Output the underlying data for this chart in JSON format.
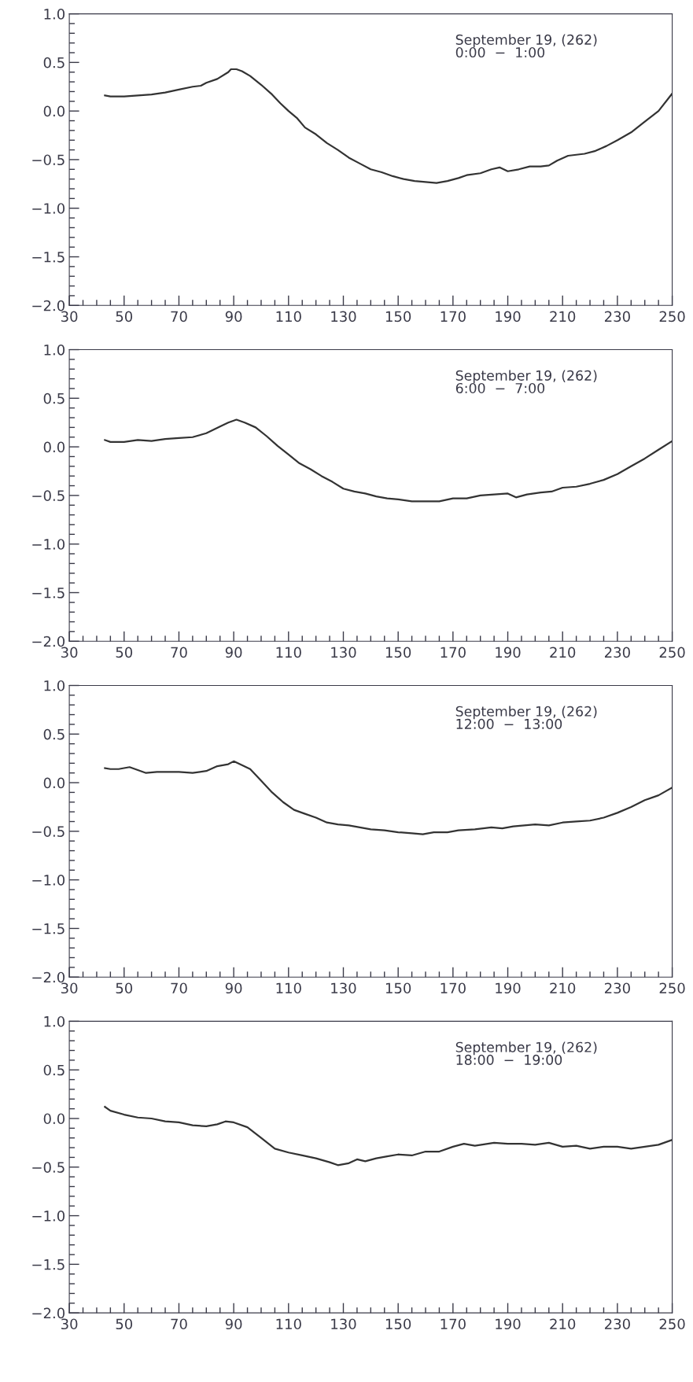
{
  "chart_data": [
    {
      "type": "line",
      "annotations": [
        "September 19, (262)",
        "0:00  −  1:00"
      ],
      "xlim": [
        30,
        250
      ],
      "ylim": [
        -2.0,
        1.0
      ],
      "grid": false,
      "marker": "none",
      "line_style": "solid",
      "xticks": [
        30,
        {
          "value": 35,
          "label": null
        },
        {
          "value": 40,
          "label": null
        },
        {
          "value": 45,
          "label": null
        },
        50,
        {
          "value": 55,
          "label": null
        },
        {
          "value": 60,
          "label": null
        },
        {
          "value": 65,
          "label": null
        },
        70,
        {
          "value": 75,
          "label": null
        },
        {
          "value": 80,
          "label": null
        },
        {
          "value": 85,
          "label": null
        },
        90,
        {
          "value": 95,
          "label": null
        },
        {
          "value": 100,
          "label": null
        },
        {
          "value": 105,
          "label": null
        },
        110,
        {
          "value": 115,
          "label": null
        },
        {
          "value": 120,
          "label": null
        },
        {
          "value": 125,
          "label": null
        },
        130,
        {
          "value": 135,
          "label": null
        },
        {
          "value": 140,
          "label": null
        },
        {
          "value": 145,
          "label": null
        },
        150,
        {
          "value": 155,
          "label": null
        },
        {
          "value": 160,
          "label": null
        },
        {
          "value": 165,
          "label": null
        },
        170,
        {
          "value": 175,
          "label": null
        },
        {
          "value": 180,
          "label": null
        },
        {
          "value": 185,
          "label": null
        },
        190,
        {
          "value": 195,
          "label": null
        },
        {
          "value": 200,
          "label": null
        },
        {
          "value": 205,
          "label": null
        },
        210,
        {
          "value": 215,
          "label": null
        },
        {
          "value": 220,
          "label": null
        },
        {
          "value": 225,
          "label": null
        },
        230,
        {
          "value": 235,
          "label": null
        },
        {
          "value": 240,
          "label": null
        },
        {
          "value": 245,
          "label": null
        },
        250
      ],
      "yticks": [
        {
          "value": -2.0,
          "label": "−2.0"
        },
        {
          "value": -1.9,
          "label": null
        },
        {
          "value": -1.8,
          "label": null
        },
        {
          "value": -1.7,
          "label": null
        },
        {
          "value": -1.6,
          "label": null
        },
        {
          "value": -1.5,
          "label": "−1.5"
        },
        {
          "value": -1.4,
          "label": null
        },
        {
          "value": -1.3,
          "label": null
        },
        {
          "value": -1.2,
          "label": null
        },
        {
          "value": -1.1,
          "label": null
        },
        {
          "value": -1.0,
          "label": "−1.0"
        },
        {
          "value": -0.9,
          "label": null
        },
        {
          "value": -0.8,
          "label": null
        },
        {
          "value": -0.7,
          "label": null
        },
        {
          "value": -0.6,
          "label": null
        },
        {
          "value": -0.5,
          "label": "−0.5"
        },
        {
          "value": -0.4,
          "label": null
        },
        {
          "value": -0.3,
          "label": null
        },
        {
          "value": -0.2,
          "label": null
        },
        {
          "value": -0.1,
          "label": null
        },
        {
          "value": 0.0,
          "label": "0.0"
        },
        {
          "value": 0.1,
          "label": null
        },
        {
          "value": 0.2,
          "label": null
        },
        {
          "value": 0.3,
          "label": null
        },
        {
          "value": 0.4,
          "label": null
        },
        {
          "value": 0.5,
          "label": "0.5"
        },
        {
          "value": 0.6,
          "label": null
        },
        {
          "value": 0.7,
          "label": null
        },
        {
          "value": 0.8,
          "label": null
        },
        {
          "value": 0.9,
          "label": null
        },
        {
          "value": 1.0,
          "label": "1.0"
        }
      ],
      "series": [
        {
          "color": "#333333",
          "x": [
            43,
            45,
            50,
            55,
            60,
            65,
            70,
            75,
            78,
            80,
            84,
            88,
            89,
            91,
            93,
            96,
            100,
            104,
            107,
            110,
            113,
            116,
            120,
            124,
            128,
            132,
            136,
            140,
            144,
            148,
            152,
            156,
            160,
            164,
            168,
            172,
            175,
            180,
            184,
            187,
            190,
            194,
            198,
            202,
            205,
            208,
            212,
            218,
            222,
            226,
            230,
            235,
            240,
            245,
            250
          ],
          "values": [
            0.16,
            0.15,
            0.15,
            0.16,
            0.17,
            0.19,
            0.22,
            0.25,
            0.26,
            0.29,
            0.33,
            0.4,
            0.43,
            0.43,
            0.41,
            0.36,
            0.27,
            0.17,
            0.08,
            0.0,
            -0.07,
            -0.17,
            -0.24,
            -0.33,
            -0.4,
            -0.48,
            -0.54,
            -0.6,
            -0.63,
            -0.67,
            -0.7,
            -0.72,
            -0.73,
            -0.74,
            -0.72,
            -0.69,
            -0.66,
            -0.64,
            -0.6,
            -0.58,
            -0.62,
            -0.6,
            -0.57,
            -0.57,
            -0.56,
            -0.51,
            -0.46,
            -0.44,
            -0.41,
            -0.36,
            -0.3,
            -0.22,
            -0.11,
            0.0,
            0.18
          ]
        }
      ]
    },
    {
      "type": "line",
      "annotations": [
        "September 19, (262)",
        "6:00  −  7:00"
      ],
      "xlim": [
        30,
        250
      ],
      "ylim": [
        -2.0,
        1.0
      ],
      "grid": false,
      "marker": "none",
      "line_style": "solid",
      "xticks": [
        30,
        {
          "value": 35,
          "label": null
        },
        {
          "value": 40,
          "label": null
        },
        {
          "value": 45,
          "label": null
        },
        50,
        {
          "value": 55,
          "label": null
        },
        {
          "value": 60,
          "label": null
        },
        {
          "value": 65,
          "label": null
        },
        70,
        {
          "value": 75,
          "label": null
        },
        {
          "value": 80,
          "label": null
        },
        {
          "value": 85,
          "label": null
        },
        90,
        {
          "value": 95,
          "label": null
        },
        {
          "value": 100,
          "label": null
        },
        {
          "value": 105,
          "label": null
        },
        110,
        {
          "value": 115,
          "label": null
        },
        {
          "value": 120,
          "label": null
        },
        {
          "value": 125,
          "label": null
        },
        130,
        {
          "value": 135,
          "label": null
        },
        {
          "value": 140,
          "label": null
        },
        {
          "value": 145,
          "label": null
        },
        150,
        {
          "value": 155,
          "label": null
        },
        {
          "value": 160,
          "label": null
        },
        {
          "value": 165,
          "label": null
        },
        170,
        {
          "value": 175,
          "label": null
        },
        {
          "value": 180,
          "label": null
        },
        {
          "value": 185,
          "label": null
        },
        190,
        {
          "value": 195,
          "label": null
        },
        {
          "value": 200,
          "label": null
        },
        {
          "value": 205,
          "label": null
        },
        210,
        {
          "value": 215,
          "label": null
        },
        {
          "value": 220,
          "label": null
        },
        {
          "value": 225,
          "label": null
        },
        230,
        {
          "value": 235,
          "label": null
        },
        {
          "value": 240,
          "label": null
        },
        {
          "value": 245,
          "label": null
        },
        250
      ],
      "yticks": [
        {
          "value": -2.0,
          "label": "−2.0"
        },
        {
          "value": -1.9,
          "label": null
        },
        {
          "value": -1.8,
          "label": null
        },
        {
          "value": -1.7,
          "label": null
        },
        {
          "value": -1.6,
          "label": null
        },
        {
          "value": -1.5,
          "label": "−1.5"
        },
        {
          "value": -1.4,
          "label": null
        },
        {
          "value": -1.3,
          "label": null
        },
        {
          "value": -1.2,
          "label": null
        },
        {
          "value": -1.1,
          "label": null
        },
        {
          "value": -1.0,
          "label": "−1.0"
        },
        {
          "value": -0.9,
          "label": null
        },
        {
          "value": -0.8,
          "label": null
        },
        {
          "value": -0.7,
          "label": null
        },
        {
          "value": -0.6,
          "label": null
        },
        {
          "value": -0.5,
          "label": "−0.5"
        },
        {
          "value": -0.4,
          "label": null
        },
        {
          "value": -0.3,
          "label": null
        },
        {
          "value": -0.2,
          "label": null
        },
        {
          "value": -0.1,
          "label": null
        },
        {
          "value": 0.0,
          "label": "0.0"
        },
        {
          "value": 0.1,
          "label": null
        },
        {
          "value": 0.2,
          "label": null
        },
        {
          "value": 0.3,
          "label": null
        },
        {
          "value": 0.4,
          "label": null
        },
        {
          "value": 0.5,
          "label": "0.5"
        },
        {
          "value": 0.6,
          "label": null
        },
        {
          "value": 0.7,
          "label": null
        },
        {
          "value": 0.8,
          "label": null
        },
        {
          "value": 0.9,
          "label": null
        },
        {
          "value": 1.0,
          "label": "1.0"
        }
      ],
      "series": [
        {
          "color": "#333333",
          "x": [
            43,
            45,
            50,
            55,
            60,
            65,
            70,
            75,
            80,
            85,
            88,
            91,
            94,
            98,
            102,
            106,
            110,
            114,
            118,
            122,
            126,
            130,
            134,
            138,
            142,
            146,
            150,
            155,
            160,
            165,
            170,
            175,
            180,
            185,
            190,
            193,
            197,
            202,
            206,
            210,
            215,
            220,
            225,
            230,
            235,
            240,
            245,
            250
          ],
          "values": [
            0.07,
            0.05,
            0.05,
            0.07,
            0.06,
            0.08,
            0.09,
            0.1,
            0.14,
            0.21,
            0.25,
            0.28,
            0.25,
            0.2,
            0.11,
            0.01,
            -0.08,
            -0.17,
            -0.23,
            -0.3,
            -0.36,
            -0.43,
            -0.46,
            -0.48,
            -0.51,
            -0.53,
            -0.54,
            -0.56,
            -0.56,
            -0.56,
            -0.53,
            -0.53,
            -0.5,
            -0.49,
            -0.48,
            -0.52,
            -0.49,
            -0.47,
            -0.46,
            -0.42,
            -0.41,
            -0.38,
            -0.34,
            -0.28,
            -0.2,
            -0.12,
            -0.03,
            0.06
          ]
        }
      ]
    },
    {
      "type": "line",
      "annotations": [
        "September 19, (262)",
        "12:00  −  13:00"
      ],
      "xlim": [
        30,
        250
      ],
      "ylim": [
        -2.0,
        1.0
      ],
      "grid": false,
      "marker": "none",
      "line_style": "solid",
      "xticks": [
        30,
        {
          "value": 35,
          "label": null
        },
        {
          "value": 40,
          "label": null
        },
        {
          "value": 45,
          "label": null
        },
        50,
        {
          "value": 55,
          "label": null
        },
        {
          "value": 60,
          "label": null
        },
        {
          "value": 65,
          "label": null
        },
        70,
        {
          "value": 75,
          "label": null
        },
        {
          "value": 80,
          "label": null
        },
        {
          "value": 85,
          "label": null
        },
        90,
        {
          "value": 95,
          "label": null
        },
        {
          "value": 100,
          "label": null
        },
        {
          "value": 105,
          "label": null
        },
        110,
        {
          "value": 115,
          "label": null
        },
        {
          "value": 120,
          "label": null
        },
        {
          "value": 125,
          "label": null
        },
        130,
        {
          "value": 135,
          "label": null
        },
        {
          "value": 140,
          "label": null
        },
        {
          "value": 145,
          "label": null
        },
        150,
        {
          "value": 155,
          "label": null
        },
        {
          "value": 160,
          "label": null
        },
        {
          "value": 165,
          "label": null
        },
        170,
        {
          "value": 175,
          "label": null
        },
        {
          "value": 180,
          "label": null
        },
        {
          "value": 185,
          "label": null
        },
        190,
        {
          "value": 195,
          "label": null
        },
        {
          "value": 200,
          "label": null
        },
        {
          "value": 205,
          "label": null
        },
        210,
        {
          "value": 215,
          "label": null
        },
        {
          "value": 220,
          "label": null
        },
        {
          "value": 225,
          "label": null
        },
        230,
        {
          "value": 235,
          "label": null
        },
        {
          "value": 240,
          "label": null
        },
        {
          "value": 245,
          "label": null
        },
        250
      ],
      "yticks": [
        {
          "value": -2.0,
          "label": "−2.0"
        },
        {
          "value": -1.9,
          "label": null
        },
        {
          "value": -1.8,
          "label": null
        },
        {
          "value": -1.7,
          "label": null
        },
        {
          "value": -1.6,
          "label": null
        },
        {
          "value": -1.5,
          "label": "−1.5"
        },
        {
          "value": -1.4,
          "label": null
        },
        {
          "value": -1.3,
          "label": null
        },
        {
          "value": -1.2,
          "label": null
        },
        {
          "value": -1.1,
          "label": null
        },
        {
          "value": -1.0,
          "label": "−1.0"
        },
        {
          "value": -0.9,
          "label": null
        },
        {
          "value": -0.8,
          "label": null
        },
        {
          "value": -0.7,
          "label": null
        },
        {
          "value": -0.6,
          "label": null
        },
        {
          "value": -0.5,
          "label": "−0.5"
        },
        {
          "value": -0.4,
          "label": null
        },
        {
          "value": -0.3,
          "label": null
        },
        {
          "value": -0.2,
          "label": null
        },
        {
          "value": -0.1,
          "label": null
        },
        {
          "value": 0.0,
          "label": "0.0"
        },
        {
          "value": 0.1,
          "label": null
        },
        {
          "value": 0.2,
          "label": null
        },
        {
          "value": 0.3,
          "label": null
        },
        {
          "value": 0.4,
          "label": null
        },
        {
          "value": 0.5,
          "label": "0.5"
        },
        {
          "value": 0.6,
          "label": null
        },
        {
          "value": 0.7,
          "label": null
        },
        {
          "value": 0.8,
          "label": null
        },
        {
          "value": 0.9,
          "label": null
        },
        {
          "value": 1.0,
          "label": "1.0"
        }
      ],
      "series": [
        {
          "color": "#333333",
          "x": [
            43,
            45,
            48,
            52,
            55,
            58,
            62,
            70,
            75,
            80,
            84,
            88,
            90,
            93,
            96,
            100,
            104,
            108,
            112,
            116,
            120,
            124,
            128,
            132,
            136,
            140,
            145,
            150,
            155,
            159,
            163,
            168,
            172,
            178,
            184,
            188,
            192,
            196,
            200,
            205,
            210,
            215,
            220,
            225,
            230,
            235,
            240,
            245,
            250
          ],
          "values": [
            0.15,
            0.14,
            0.14,
            0.16,
            0.13,
            0.1,
            0.11,
            0.11,
            0.1,
            0.12,
            0.17,
            0.19,
            0.22,
            0.18,
            0.14,
            0.02,
            -0.1,
            -0.2,
            -0.28,
            -0.32,
            -0.36,
            -0.41,
            -0.43,
            -0.44,
            -0.46,
            -0.48,
            -0.49,
            -0.51,
            -0.52,
            -0.53,
            -0.51,
            -0.51,
            -0.49,
            -0.48,
            -0.46,
            -0.47,
            -0.45,
            -0.44,
            -0.43,
            -0.44,
            -0.41,
            -0.4,
            -0.39,
            -0.36,
            -0.31,
            -0.25,
            -0.18,
            -0.13,
            -0.05
          ]
        }
      ]
    },
    {
      "type": "line",
      "annotations": [
        "September 19, (262)",
        "18:00  −  19:00"
      ],
      "xlim": [
        30,
        250
      ],
      "ylim": [
        -2.0,
        1.0
      ],
      "grid": false,
      "marker": "none",
      "line_style": "solid",
      "xticks": [
        30,
        {
          "value": 35,
          "label": null
        },
        {
          "value": 40,
          "label": null
        },
        {
          "value": 45,
          "label": null
        },
        50,
        {
          "value": 55,
          "label": null
        },
        {
          "value": 60,
          "label": null
        },
        {
          "value": 65,
          "label": null
        },
        70,
        {
          "value": 75,
          "label": null
        },
        {
          "value": 80,
          "label": null
        },
        {
          "value": 85,
          "label": null
        },
        90,
        {
          "value": 95,
          "label": null
        },
        {
          "value": 100,
          "label": null
        },
        {
          "value": 105,
          "label": null
        },
        110,
        {
          "value": 115,
          "label": null
        },
        {
          "value": 120,
          "label": null
        },
        {
          "value": 125,
          "label": null
        },
        130,
        {
          "value": 135,
          "label": null
        },
        {
          "value": 140,
          "label": null
        },
        {
          "value": 145,
          "label": null
        },
        150,
        {
          "value": 155,
          "label": null
        },
        {
          "value": 160,
          "label": null
        },
        {
          "value": 165,
          "label": null
        },
        170,
        {
          "value": 175,
          "label": null
        },
        {
          "value": 180,
          "label": null
        },
        {
          "value": 185,
          "label": null
        },
        190,
        {
          "value": 195,
          "label": null
        },
        {
          "value": 200,
          "label": null
        },
        {
          "value": 205,
          "label": null
        },
        210,
        {
          "value": 215,
          "label": null
        },
        {
          "value": 220,
          "label": null
        },
        {
          "value": 225,
          "label": null
        },
        230,
        {
          "value": 235,
          "label": null
        },
        {
          "value": 240,
          "label": null
        },
        {
          "value": 245,
          "label": null
        },
        250
      ],
      "yticks": [
        {
          "value": -2.0,
          "label": "−2.0"
        },
        {
          "value": -1.9,
          "label": null
        },
        {
          "value": -1.8,
          "label": null
        },
        {
          "value": -1.7,
          "label": null
        },
        {
          "value": -1.6,
          "label": null
        },
        {
          "value": -1.5,
          "label": "−1.5"
        },
        {
          "value": -1.4,
          "label": null
        },
        {
          "value": -1.3,
          "label": null
        },
        {
          "value": -1.2,
          "label": null
        },
        {
          "value": -1.1,
          "label": null
        },
        {
          "value": -1.0,
          "label": "−1.0"
        },
        {
          "value": -0.9,
          "label": null
        },
        {
          "value": -0.8,
          "label": null
        },
        {
          "value": -0.7,
          "label": null
        },
        {
          "value": -0.6,
          "label": null
        },
        {
          "value": -0.5,
          "label": "−0.5"
        },
        {
          "value": -0.4,
          "label": null
        },
        {
          "value": -0.3,
          "label": null
        },
        {
          "value": -0.2,
          "label": null
        },
        {
          "value": -0.1,
          "label": null
        },
        {
          "value": 0.0,
          "label": "0.0"
        },
        {
          "value": 0.1,
          "label": null
        },
        {
          "value": 0.2,
          "label": null
        },
        {
          "value": 0.3,
          "label": null
        },
        {
          "value": 0.4,
          "label": null
        },
        {
          "value": 0.5,
          "label": "0.5"
        },
        {
          "value": 0.6,
          "label": null
        },
        {
          "value": 0.7,
          "label": null
        },
        {
          "value": 0.8,
          "label": null
        },
        {
          "value": 0.9,
          "label": null
        },
        {
          "value": 1.0,
          "label": "1.0"
        }
      ],
      "series": [
        {
          "color": "#333333",
          "x": [
            43,
            45,
            50,
            55,
            60,
            65,
            70,
            75,
            80,
            84,
            87,
            90,
            95,
            100,
            105,
            110,
            115,
            120,
            125,
            128,
            132,
            135,
            138,
            142,
            146,
            150,
            155,
            160,
            165,
            170,
            174,
            178,
            185,
            190,
            195,
            200,
            205,
            210,
            215,
            220,
            225,
            230,
            235,
            240,
            245,
            250
          ],
          "values": [
            0.12,
            0.08,
            0.04,
            0.01,
            0.0,
            -0.03,
            -0.04,
            -0.07,
            -0.08,
            -0.06,
            -0.03,
            -0.04,
            -0.09,
            -0.2,
            -0.31,
            -0.35,
            -0.38,
            -0.41,
            -0.45,
            -0.48,
            -0.46,
            -0.42,
            -0.44,
            -0.41,
            -0.39,
            -0.37,
            -0.38,
            -0.34,
            -0.34,
            -0.29,
            -0.26,
            -0.28,
            -0.25,
            -0.26,
            -0.26,
            -0.27,
            -0.25,
            -0.29,
            -0.28,
            -0.31,
            -0.29,
            -0.29,
            -0.31,
            -0.29,
            -0.27,
            -0.22
          ]
        }
      ]
    }
  ]
}
